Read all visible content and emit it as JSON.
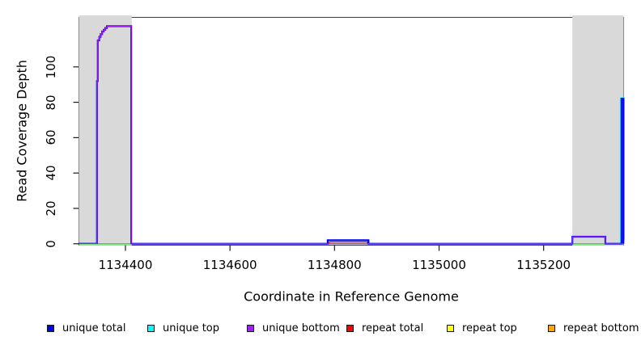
{
  "figure": {
    "xlabel": "Coordinate in Reference Genome",
    "ylabel": "Read Coverage Depth"
  },
  "chart_data": {
    "type": "line",
    "subtype": "step-coverage-depth",
    "title": "",
    "xlabel": "Coordinate in Reference Genome",
    "ylabel": "Read Coverage Depth",
    "xlim": [
      1134311,
      1135353
    ],
    "ylim": [
      -0.8,
      128
    ],
    "x_ticks": [
      1134400,
      1134600,
      1134800,
      1135000,
      1135200
    ],
    "y_ticks": [
      0,
      20,
      40,
      60,
      80,
      100
    ],
    "grid": false,
    "background": "#ffffff",
    "box_color": "#454545",
    "tick_color": "#1a1a1a",
    "legend_position": "bottom",
    "shaded_regions": [
      {
        "name": "masked-region-left",
        "x0": 1134311,
        "x1": 1134412,
        "color": "#d9d9d9"
      },
      {
        "name": "masked-region-right",
        "x0": 1135255,
        "x1": 1135353,
        "color": "#d9d9d9"
      }
    ],
    "series": [
      {
        "name": "repeat top",
        "color": "#ffff00",
        "width": 1,
        "segments": [
          {
            "pts": [
              [
                1134311,
                0
              ],
              [
                1135353,
                0
              ]
            ]
          }
        ]
      },
      {
        "name": "repeat bottom",
        "color": "#ffa500",
        "width": 1,
        "segments": [
          {
            "pts": [
              [
                1134311,
                0
              ],
              [
                1135353,
                0
              ]
            ]
          }
        ]
      },
      {
        "name": "repeat total",
        "color": "#ff0000",
        "width": 1.3,
        "segments": [
          {
            "pts": [
              [
                1134311,
                0
              ],
              [
                1134790,
                0
              ],
              [
                1134790,
                1
              ],
              [
                1134863,
                1
              ],
              [
                1134863,
                0
              ],
              [
                1135353,
                0
              ]
            ]
          }
        ]
      },
      {
        "name": "unique top",
        "color": "#00ffff",
        "width": 1,
        "segments": [
          {
            "pts": [
              [
                1134311,
                0
              ],
              [
                1135348,
                0
              ]
            ]
          },
          {
            "w": 3.4,
            "pts": [
              [
                1135349,
                0
              ],
              [
                1135349,
                82
              ],
              [
                1135352.5,
                82
              ],
              [
                1135352.5,
                2
              ]
            ]
          }
        ]
      },
      {
        "name": "unique total",
        "color": "#0000ff",
        "width": 2.2,
        "segments": [
          {
            "pts": [
              [
                1134311,
                0
              ],
              [
                1134345.5,
                0
              ],
              [
                1134345.5,
                92
              ],
              [
                1134347,
                92
              ],
              [
                1134347,
                115
              ],
              [
                1134350,
                115
              ],
              [
                1134350,
                117
              ],
              [
                1134352.5,
                117
              ],
              [
                1134352.5,
                118.5
              ],
              [
                1134355.5,
                118.5
              ],
              [
                1134355.5,
                120
              ],
              [
                1134358.5,
                120
              ],
              [
                1134358.5,
                121
              ],
              [
                1134361.5,
                121
              ],
              [
                1134361.5,
                122
              ],
              [
                1134364.5,
                122
              ],
              [
                1134364.5,
                123
              ],
              [
                1134411,
                123
              ],
              [
                1134411,
                0
              ],
              [
                1134787,
                0
              ],
              [
                1134787,
                2
              ],
              [
                1134865,
                2
              ],
              [
                1134865,
                0
              ],
              [
                1135255,
                0
              ],
              [
                1135255,
                4
              ],
              [
                1135318,
                4
              ],
              [
                1135318,
                0
              ],
              [
                1135349,
                0
              ],
              [
                1135349,
                82
              ],
              [
                1135352.5,
                82
              ],
              [
                1135352.5,
                0
              ]
            ]
          }
        ]
      },
      {
        "name": "unique bottom",
        "color": "#a020f0",
        "width": 1.2,
        "segments": [
          {
            "pts": [
              [
                1134311,
                0
              ],
              [
                1134345.5,
                0
              ],
              [
                1134345.5,
                92
              ],
              [
                1134347,
                92
              ],
              [
                1134347,
                115
              ],
              [
                1134350,
                115
              ],
              [
                1134350,
                117
              ],
              [
                1134352.5,
                117
              ],
              [
                1134352.5,
                118.5
              ],
              [
                1134355.5,
                118.5
              ],
              [
                1134355.5,
                120
              ],
              [
                1134358.5,
                120
              ],
              [
                1134358.5,
                121
              ],
              [
                1134361.5,
                121
              ],
              [
                1134361.5,
                122
              ],
              [
                1134364.5,
                122
              ],
              [
                1134364.5,
                123
              ],
              [
                1134411,
                123
              ],
              [
                1134411,
                0
              ],
              [
                1135255,
                0
              ],
              [
                1135255,
                4
              ],
              [
                1135318,
                4
              ],
              [
                1135318,
                0
              ],
              [
                1135353,
                0
              ]
            ]
          }
        ]
      },
      {
        "name": "top-strand zero overlap",
        "color": "#7de37d",
        "width": 1.6,
        "segments": [
          {
            "pts": [
              [
                1134312,
                -0.5
              ],
              [
                1134411,
                -0.5
              ]
            ]
          },
          {
            "pts": [
              [
                1135256,
                -0.5
              ],
              [
                1135317,
                -0.5
              ]
            ]
          }
        ]
      }
    ],
    "legend": [
      {
        "label": "unique total",
        "color": "#0000ff"
      },
      {
        "label": "unique top",
        "color": "#00ffff"
      },
      {
        "label": "unique bottom",
        "color": "#a020f0"
      },
      {
        "label": "repeat total",
        "color": "#ff0000"
      },
      {
        "label": "repeat top",
        "color": "#ffff00"
      },
      {
        "label": "repeat bottom",
        "color": "#ffa500"
      }
    ],
    "annotations": {
      "left_peak": {
        "span": [
          1134346,
          1134411
        ],
        "max_depth": 123,
        "visible_strand": "bottom"
      },
      "small_bump": {
        "span": [
          1134787,
          1134865
        ],
        "unique_total_depth": 2,
        "repeat_total_depth": 1
      },
      "right_plateau": {
        "span": [
          1135255,
          1135318
        ],
        "depth": 4,
        "visible_strand": "bottom"
      },
      "edge_spike": {
        "span": [
          1135349,
          1135353
        ],
        "depth": 82,
        "visible_strand": "top"
      }
    }
  }
}
